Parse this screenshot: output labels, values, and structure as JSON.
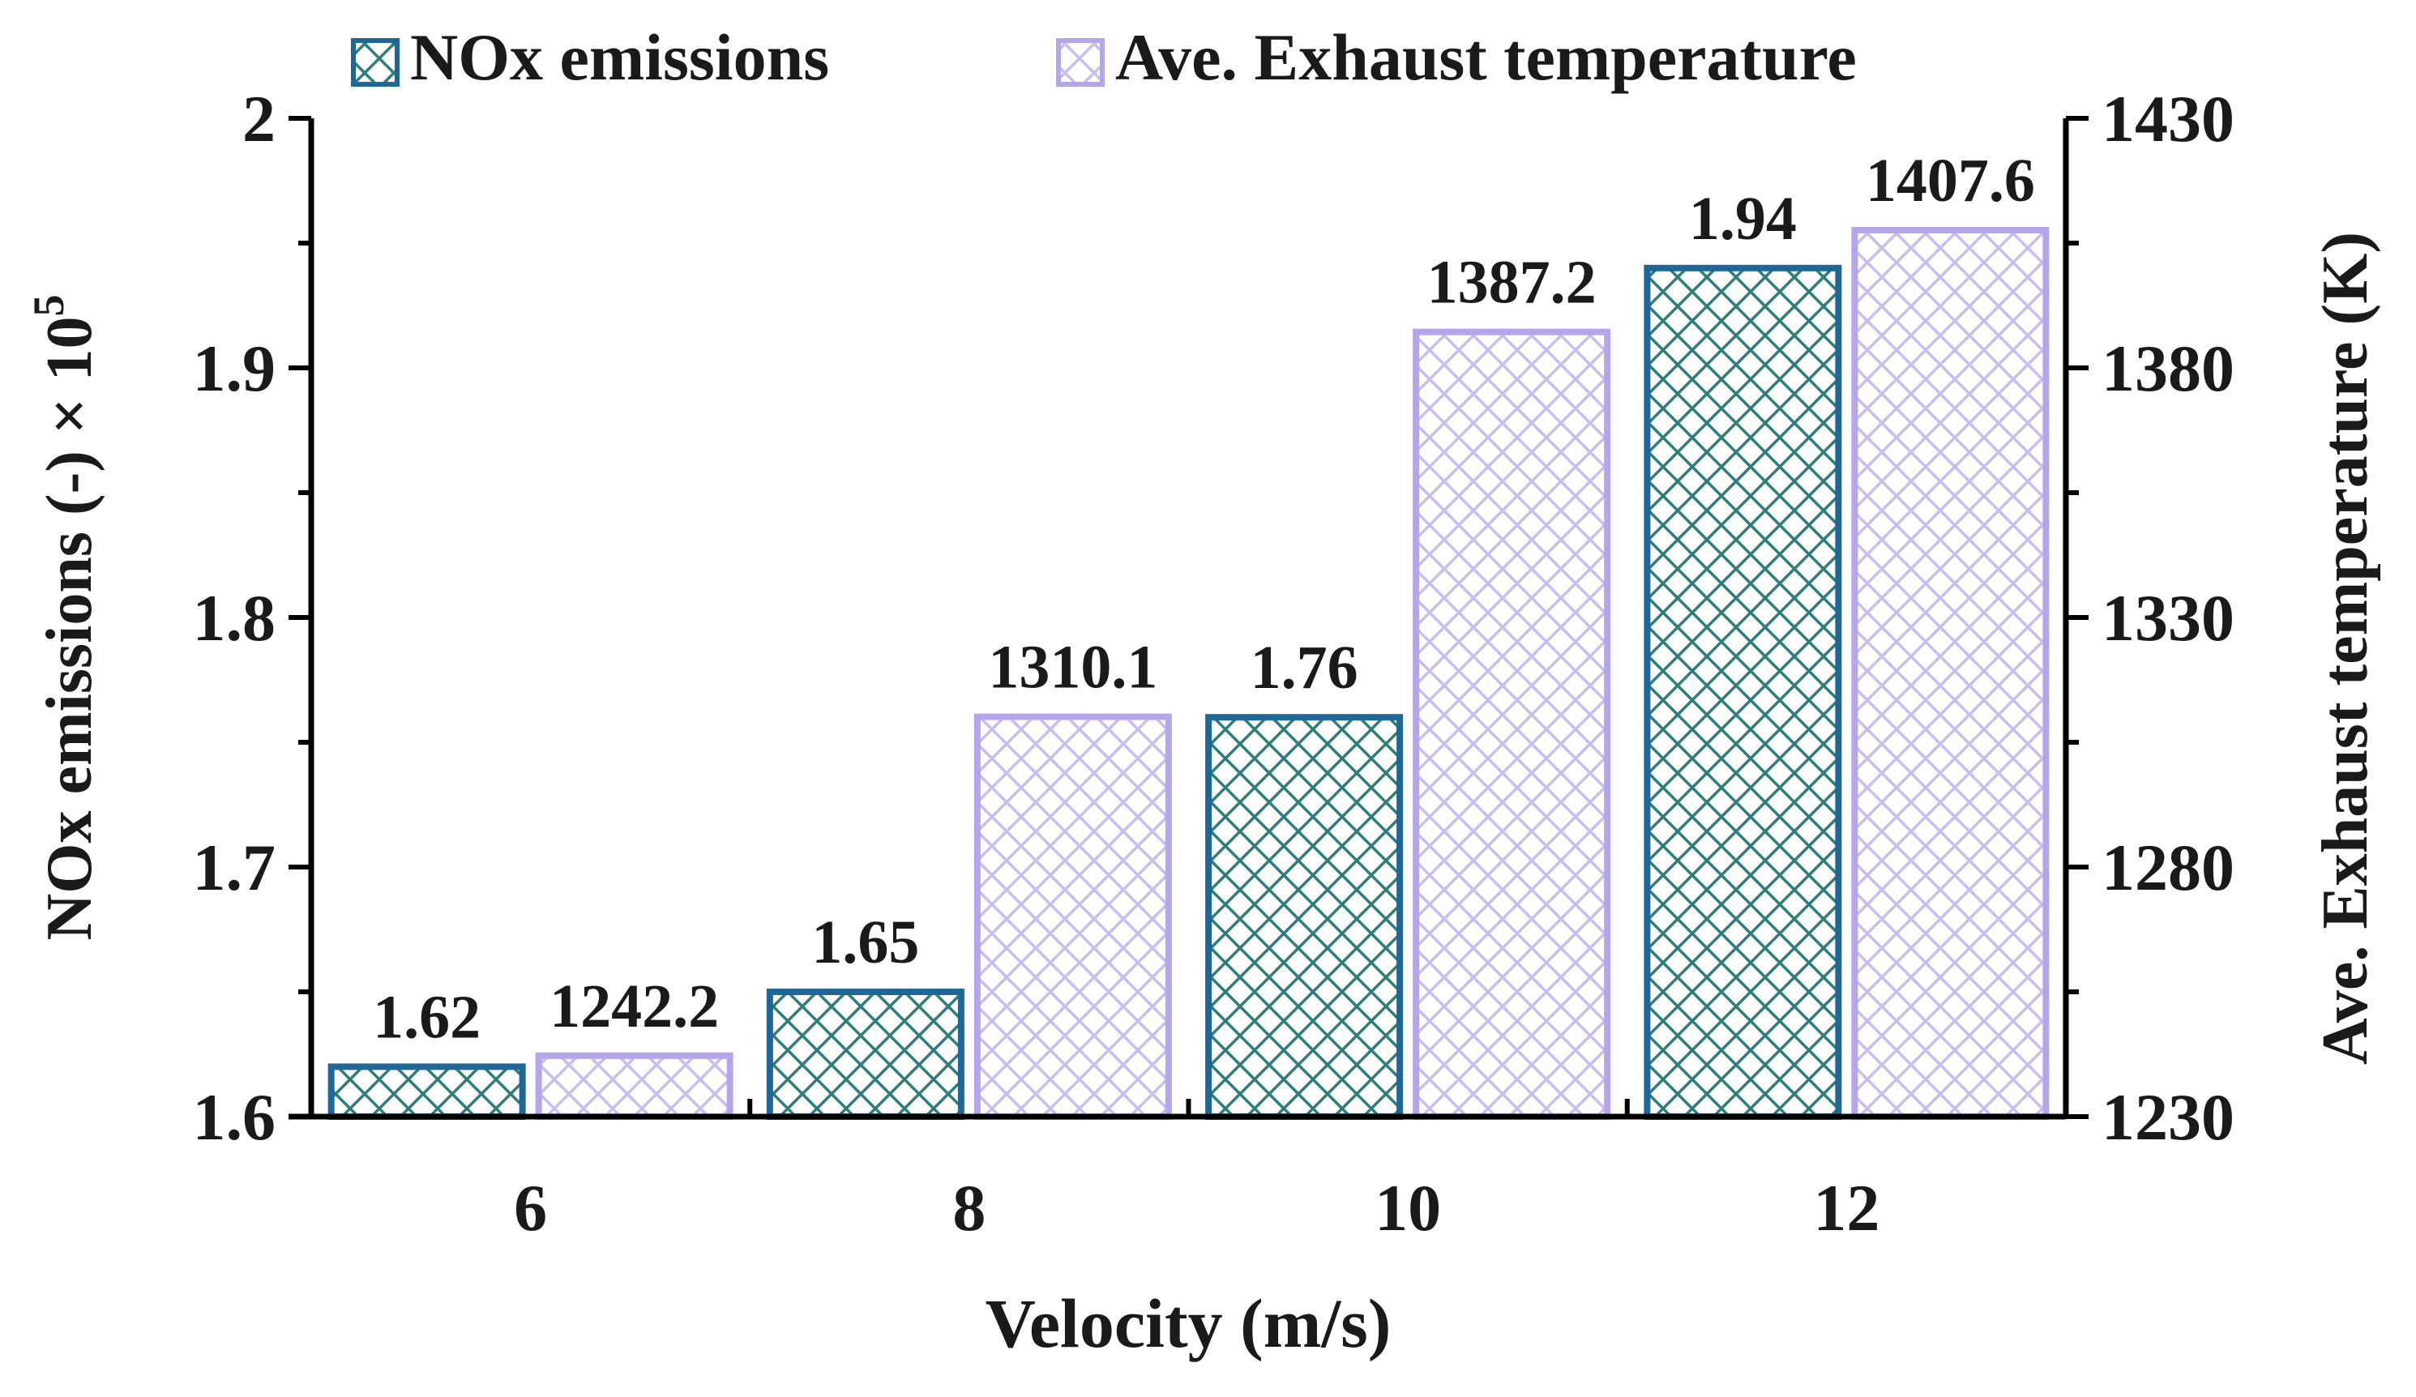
{
  "chart_data": {
    "type": "bar",
    "title": "",
    "xlabel": "Velocity (m/s)",
    "ylabel": "NOx emissions (-) × 10",
    "ylabel_exponent": "5",
    "y2label": "Ave. Exhaust temperature (K)",
    "categories": [
      "6",
      "8",
      "10",
      "12"
    ],
    "ylim": [
      1.6,
      2.0
    ],
    "y2lim": [
      1230,
      1430
    ],
    "yticks": [
      "1.6",
      "1.7",
      "1.8",
      "1.9",
      "2"
    ],
    "y2ticks": [
      "1230",
      "1280",
      "1330",
      "1380",
      "1430"
    ],
    "grid": false,
    "legend_position": "top",
    "series": [
      {
        "name": "NOx emissions",
        "axis": "left",
        "values": [
          1.62,
          1.65,
          1.76,
          1.94
        ],
        "labels": [
          "1.62",
          "1.65",
          "1.76",
          "1.94"
        ],
        "color": "#1f6797",
        "hatch": "#2e7d7a"
      },
      {
        "name": "Ave. Exhaust temperature",
        "axis": "right",
        "values": [
          1242.2,
          1310.1,
          1387.2,
          1407.6
        ],
        "labels": [
          "1242.2",
          "1310.1",
          "1387.2",
          "1407.6"
        ],
        "color": "#b7a5ec",
        "hatch": "#c9bdf0"
      }
    ]
  }
}
